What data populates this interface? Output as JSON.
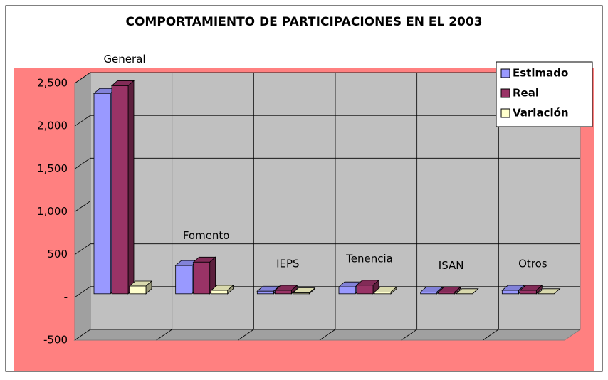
{
  "chart_data": {
    "type": "bar3d",
    "title": "COMPORTAMIENTO DE PARTICIPACIONES EN EL 2003",
    "categories": [
      "General",
      "Fomento",
      "IEPS",
      "Tenencia",
      "ISAN",
      "Otros"
    ],
    "series": [
      {
        "name": "Estimado",
        "color": "#9999ff",
        "values": [
          2340,
          330,
          30,
          80,
          20,
          40
        ]
      },
      {
        "name": "Real",
        "color": "#993366",
        "values": [
          2430,
          370,
          40,
          100,
          20,
          40
        ]
      },
      {
        "name": "Variación",
        "color": "#ffffcc",
        "values": [
          90,
          40,
          10,
          20,
          0,
          0
        ]
      }
    ],
    "ylim": [
      -500,
      2500
    ],
    "yticks": [
      -500,
      {
        "value": 0,
        "label": "-"
      },
      500,
      {
        "value": 1000,
        "label": "1,000"
      },
      {
        "value": 1500,
        "label": "1,500"
      },
      {
        "value": 2000,
        "label": "2,000"
      },
      {
        "value": 2500,
        "label": "2,500"
      }
    ],
    "grid": true,
    "legend": "top-right"
  }
}
